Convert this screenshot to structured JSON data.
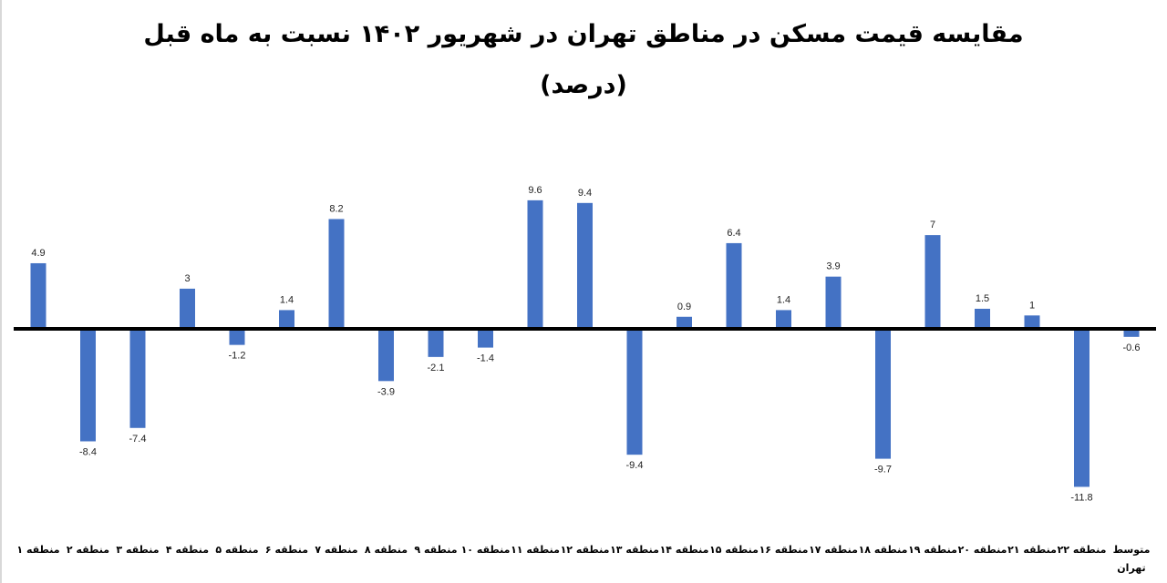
{
  "title": {
    "line1": "مقایسه قیمت مسکن در مناطق تهران در شهریور ۱۴۰۲ نسبت به ماه قبل",
    "line2": "(درصد)"
  },
  "colors": {
    "bar": "#4472c4",
    "axis": "#000000",
    "background": "#ffffff"
  },
  "chart_data": {
    "type": "bar",
    "title": "مقایسه قیمت مسکن در مناطق تهران در شهریور ۱۴۰۲ نسبت به ماه قبل (درصد)",
    "xlabel": "",
    "ylabel": "درصد",
    "grid": false,
    "legend": null,
    "categories": [
      "منطقه ۱",
      "منطقه ۲",
      "منطقه ۳",
      "منطقه ۴",
      "منطقه ۵",
      "منطقه ۶",
      "منطقه ۷",
      "منطقه ۸",
      "منطقه ۹",
      "منطقه ۱۰",
      "منطقه ۱۱",
      "منطقه ۱۲",
      "منطقه ۱۳",
      "منطقه ۱۴",
      "منطقه ۱۵",
      "منطقه ۱۶",
      "منطقه ۱۷",
      "منطقه ۱۸",
      "منطقه ۱۹",
      "منطقه ۲۰",
      "منطقه ۲۱",
      "منطقه ۲۲",
      "متوسط تهران"
    ],
    "values": [
      4.9,
      -8.4,
      -7.4,
      3,
      -1.2,
      1.4,
      8.2,
      -3.9,
      -2.1,
      -1.4,
      9.6,
      9.4,
      -9.4,
      0.9,
      6.4,
      1.4,
      3.9,
      -9.7,
      7,
      1.5,
      1,
      -11.8,
      -0.6
    ],
    "value_labels": [
      "4.9",
      "-8.4",
      "-7.4",
      "3",
      "-1.2",
      "1.4",
      "8.2",
      "-3.9",
      "-2.1",
      "-1.4",
      "9.6",
      "9.4",
      "-9.4",
      "0.9",
      "6.4",
      "1.4",
      "3.9",
      "-9.7",
      "7",
      "1.5",
      "1",
      "-11.8",
      "-0.6"
    ],
    "ylim": [
      -12,
      10
    ]
  }
}
